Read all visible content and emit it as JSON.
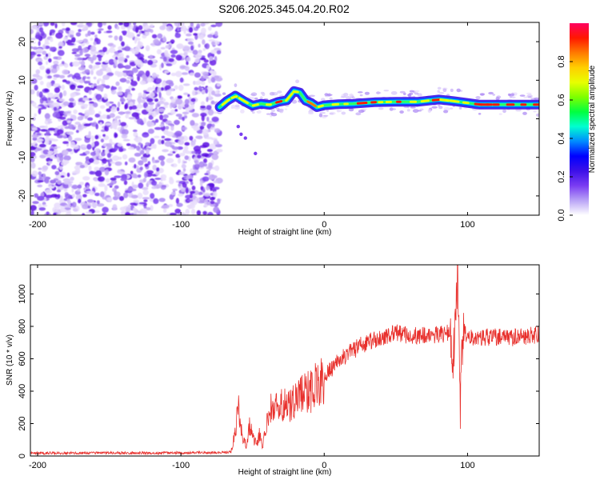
{
  "figure": {
    "title": "S206.2025.345.04.20.R02"
  },
  "chart_data": [
    {
      "type": "heatmap",
      "title": "S206.2025.345.04.20.R02",
      "xlabel": "Height of straight line (km)",
      "ylabel": "Frequency (Hz)",
      "xlim": [
        -205,
        150
      ],
      "ylim": [
        -25,
        25
      ],
      "xticks": [
        -200,
        -100,
        0,
        100
      ],
      "yticks": [
        -20,
        -10,
        0,
        10,
        20
      ],
      "colorbar": {
        "label": "Normalized spectral amplitude",
        "range": [
          0,
          1
        ],
        "ticks": [
          "0.0",
          "0.2",
          "0.4",
          "0.6",
          "0.8"
        ],
        "colors": [
          "#ffffff",
          "#b9a3f6",
          "#7a3cf2",
          "#3c10e8",
          "#0000ff",
          "#008cff",
          "#00ffd0",
          "#00ff40",
          "#7dff00",
          "#e8ff00",
          "#ffcf00",
          "#ff7a00",
          "#ff1800",
          "#ff0060"
        ]
      },
      "features": {
        "noise_region_x": [
          -205,
          -73
        ],
        "signal_start_x": -73,
        "carrier_track": [
          {
            "x": -73,
            "y": 3.0
          },
          {
            "x": -68,
            "y": 4.6
          },
          {
            "x": -62,
            "y": 6.0
          },
          {
            "x": -56,
            "y": 4.6
          },
          {
            "x": -50,
            "y": 3.4
          },
          {
            "x": -44,
            "y": 3.9
          },
          {
            "x": -38,
            "y": 3.6
          },
          {
            "x": -32,
            "y": 4.4
          },
          {
            "x": -26,
            "y": 4.8
          },
          {
            "x": -21,
            "y": 7.2
          },
          {
            "x": -17,
            "y": 6.8
          },
          {
            "x": -13,
            "y": 4.7
          },
          {
            "x": -9,
            "y": 4.1
          },
          {
            "x": -5,
            "y": 3.0
          },
          {
            "x": 0,
            "y": 3.5
          },
          {
            "x": 10,
            "y": 3.8
          },
          {
            "x": 20,
            "y": 3.9
          },
          {
            "x": 35,
            "y": 4.3
          },
          {
            "x": 50,
            "y": 4.4
          },
          {
            "x": 65,
            "y": 4.4
          },
          {
            "x": 80,
            "y": 5.0
          },
          {
            "x": 90,
            "y": 4.6
          },
          {
            "x": 100,
            "y": 4.1
          },
          {
            "x": 108,
            "y": 3.7
          },
          {
            "x": 150,
            "y": 3.7
          }
        ]
      }
    },
    {
      "type": "line",
      "xlabel": "Height of straight line (km)",
      "ylabel": "SNR (10 * v/v)",
      "xlim": [
        -205,
        150
      ],
      "ylim": [
        0,
        1180
      ],
      "xticks": [
        -200,
        -100,
        0,
        100
      ],
      "yticks": [
        0,
        200,
        400,
        600,
        800,
        1000
      ],
      "color": "#e8302c",
      "series": [
        {
          "name": "SNR",
          "x": [
            -205,
            -180,
            -150,
            -120,
            -100,
            -80,
            -65,
            -62,
            -60,
            -58,
            -56,
            -54,
            -52,
            -50,
            -47,
            -45,
            -43,
            -40,
            -38,
            -35,
            -30,
            -25,
            -20,
            -15,
            -10,
            -5,
            0,
            5,
            10,
            15,
            20,
            25,
            30,
            40,
            50,
            55,
            60,
            70,
            80,
            88,
            90,
            92,
            93,
            94,
            95,
            96,
            98,
            100,
            110,
            120,
            130,
            140,
            150
          ],
          "y": [
            18,
            18,
            20,
            18,
            20,
            20,
            25,
            150,
            320,
            180,
            90,
            60,
            190,
            120,
            70,
            140,
            60,
            200,
            300,
            280,
            320,
            300,
            360,
            380,
            400,
            440,
            480,
            540,
            600,
            620,
            650,
            680,
            700,
            730,
            760,
            750,
            740,
            750,
            750,
            760,
            600,
            900,
            1140,
            800,
            300,
            700,
            760,
            740,
            730,
            735,
            730,
            740,
            750
          ]
        }
      ]
    }
  ]
}
